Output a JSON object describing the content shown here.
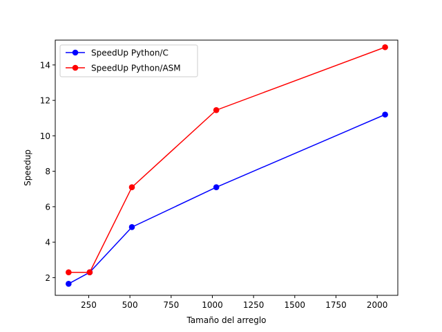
{
  "chart_data": {
    "type": "line",
    "title": "",
    "xlabel": "Tamaño del arreglo",
    "ylabel": "Speedup",
    "xlim": [
      47,
      2125
    ],
    "ylim": [
      1.0,
      15.4
    ],
    "xticks": [
      250,
      500,
      750,
      1000,
      1250,
      1500,
      1750,
      2000
    ],
    "yticks": [
      2,
      4,
      6,
      8,
      10,
      12,
      14
    ],
    "grid": false,
    "legend_position": "top-left",
    "series": [
      {
        "name": "SpeedUp Python/C",
        "color": "#0000ff",
        "x": [
          128,
          256,
          512,
          1024,
          2048
        ],
        "y": [
          1.65,
          2.3,
          4.85,
          7.1,
          11.2
        ]
      },
      {
        "name": "SpeedUp Python/ASM",
        "color": "#ff0000",
        "x": [
          128,
          256,
          512,
          1024,
          2048
        ],
        "y": [
          2.3,
          2.3,
          7.1,
          11.45,
          15.0
        ]
      }
    ]
  }
}
